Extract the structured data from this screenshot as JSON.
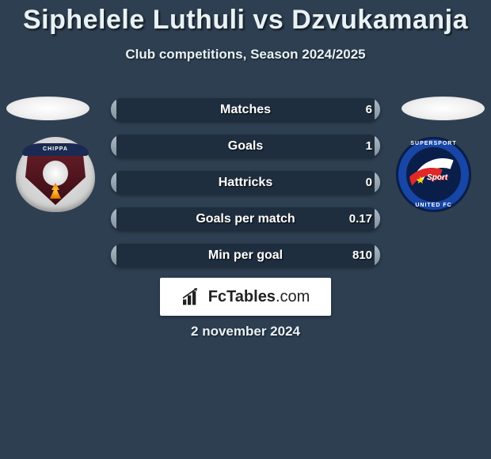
{
  "header": {
    "title": "Siphelele Luthuli vs Dzvukamanja",
    "subtitle": "Club competitions, Season 2024/2025"
  },
  "players": {
    "left": {
      "club_top_text": "CHIPPA"
    },
    "right": {
      "ring_top": "SUPERSPORT",
      "ring_bot": "UNITED FC",
      "inner_text": "Sport"
    }
  },
  "stats": [
    {
      "label": "Matches",
      "left_val": "",
      "right_val": "6",
      "left_pct": 2,
      "right_pct": 2
    },
    {
      "label": "Goals",
      "left_val": "",
      "right_val": "1",
      "left_pct": 2,
      "right_pct": 2
    },
    {
      "label": "Hattricks",
      "left_val": "",
      "right_val": "0",
      "left_pct": 2,
      "right_pct": 2
    },
    {
      "label": "Goals per match",
      "left_val": "",
      "right_val": "0.17",
      "left_pct": 2,
      "right_pct": 2
    },
    {
      "label": "Min per goal",
      "left_val": "",
      "right_val": "810",
      "left_pct": 2,
      "right_pct": 2
    }
  ],
  "branding": {
    "text_bold": "FcTables",
    "text_light": ".com"
  },
  "date": "2 november 2024",
  "style": {
    "bg": "#2e3f51",
    "bar_track": "#1f2e3e",
    "bar_fill_top": "#aebcc5",
    "bar_fill_bot": "#7e909c",
    "brand_bg": "#ffffff"
  }
}
